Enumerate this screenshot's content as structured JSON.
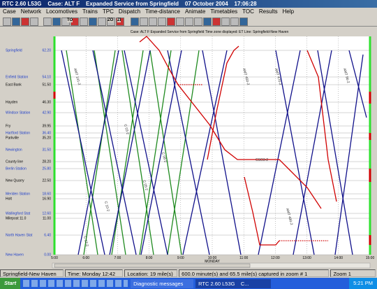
{
  "window": {
    "title": "RTC 2.60 L53G    Case: ALT F    Expanded Service from Springfield    07 October 2004    17:06:28"
  },
  "menu": [
    "Case",
    "Network",
    "Locomotives",
    "Trains",
    "TPC",
    "Dispatch",
    "Time-distance",
    "Animate",
    "Timetables",
    "TOC",
    "Results",
    "Help"
  ],
  "toolbar": [
    "TO",
    "ZO",
    "ZI"
  ],
  "graph": {
    "info": "Case: ALT F    Expanded Service from Springfield    Time zone displayed: ET    Line: Springfield-New Haven",
    "stations": [
      {
        "name": "Springfield",
        "mile": "62.20",
        "major": true
      },
      {
        "name": "Enfield Station",
        "mile": "54.10",
        "major": true
      },
      {
        "name": "East Bank",
        "mile": "51.50",
        "major": false
      },
      {
        "name": "Hayden",
        "mile": "46.30",
        "major": false
      },
      {
        "name": "Windsor Station",
        "mile": "42.90",
        "major": true
      },
      {
        "name": "Fry",
        "mile": "39.95",
        "major": false
      },
      {
        "name": "Hartford Station",
        "mile": "36.40",
        "major": true
      },
      {
        "name": "Parkville",
        "mile": "35.20",
        "major": false
      },
      {
        "name": "Newington",
        "mile": "31.50",
        "major": true
      },
      {
        "name": "County line",
        "mile": "28.20",
        "major": false
      },
      {
        "name": "Berlin Station",
        "mile": "25.80",
        "major": true
      },
      {
        "name": "New Quarry",
        "mile": "22.50",
        "major": false
      },
      {
        "name": "Meriden Station",
        "mile": "18.60",
        "major": true
      },
      {
        "name": "Holt",
        "mile": "16.90",
        "major": false
      },
      {
        "name": "Wallingford Stat",
        "mile": "12.60",
        "major": true
      },
      {
        "name": "Milepost 11.0",
        "mile": "11.00",
        "major": false
      },
      {
        "name": "North Haven Stat",
        "mile": "6.40",
        "major": true
      },
      {
        "name": "New Haven",
        "mile": "0.00",
        "major": true
      }
    ],
    "times": [
      "5:00",
      "6:00",
      "7:00",
      "8:00",
      "9:00",
      "10:00",
      "11:00",
      "12:00",
      "13:00",
      "14:00",
      "15:00"
    ],
    "day": "MONDAY",
    "train_labels": [
      "AMT 141-2",
      "C 03-2",
      "C 05-2",
      "C 08-2",
      "CSO3-2",
      "AMT 450-2",
      "AMT 470-2",
      "C 10-2",
      "C 12-2",
      "AMT 96-2",
      "AMT 490-2"
    ]
  },
  "status": [
    "Springfield-New Haven",
    "Time: Monday 12:42",
    "Location:  19 mile(s)",
    "600.0 minute(s) and 65.5 mile(s) captured in zoom # 1",
    "Zoom 1"
  ],
  "taskbar": {
    "start": "Start",
    "items": [
      "Diagnostic messages",
      "RTC 2.60 L53G    C..."
    ],
    "clock": "5:21 PM"
  }
}
